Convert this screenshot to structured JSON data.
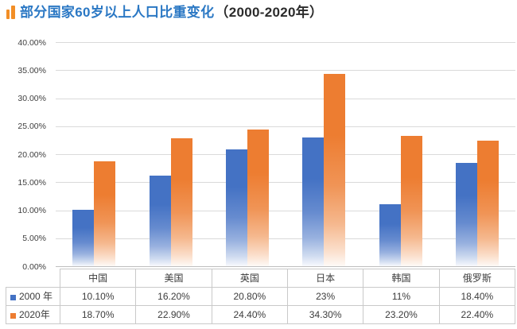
{
  "title": {
    "main": "部分国家60岁以上人口比重变化",
    "paren": "（2000-2020年）"
  },
  "colors": {
    "title_blue": "#2b78c4",
    "accent_orange": "#f28e26",
    "series_2000_blue": "#4472C4",
    "series_2020_orange": "#ED7D31",
    "gridline": "#dadada",
    "axis_line": "#bfbfbf",
    "table_border": "#c9c9c9"
  },
  "chart_data": {
    "type": "bar",
    "title": "部分国家60岁以上人口比重变化（2000-2020年）",
    "categories": [
      "中国",
      "美国",
      "英国",
      "日本",
      "韩国",
      "俄罗斯"
    ],
    "series": [
      {
        "name": "2000 年",
        "color": "#4472C4",
        "values": [
          10.1,
          16.2,
          20.8,
          23,
          11,
          18.4
        ],
        "labels": [
          "10.10%",
          "16.20%",
          "20.80%",
          "23%",
          "11%",
          "18.40%"
        ]
      },
      {
        "name": "2020年",
        "color": "#ED7D31",
        "values": [
          18.7,
          22.9,
          24.4,
          34.3,
          23.2,
          22.4
        ],
        "labels": [
          "18.70%",
          "22.90%",
          "24.40%",
          "34.30%",
          "23.20%",
          "22.40%"
        ]
      }
    ],
    "xlabel": "",
    "ylabel": "",
    "ylim": [
      0,
      40
    ],
    "ytick_step": 5,
    "ytick_labels": [
      "0.00%",
      "5.00%",
      "10.00%",
      "15.00%",
      "20.00%",
      "25.00%",
      "30.00%",
      "35.00%",
      "40.00%"
    ],
    "grid": true,
    "gradient_fill": "vertical-fade-to-white",
    "legend_position": "table-left"
  }
}
